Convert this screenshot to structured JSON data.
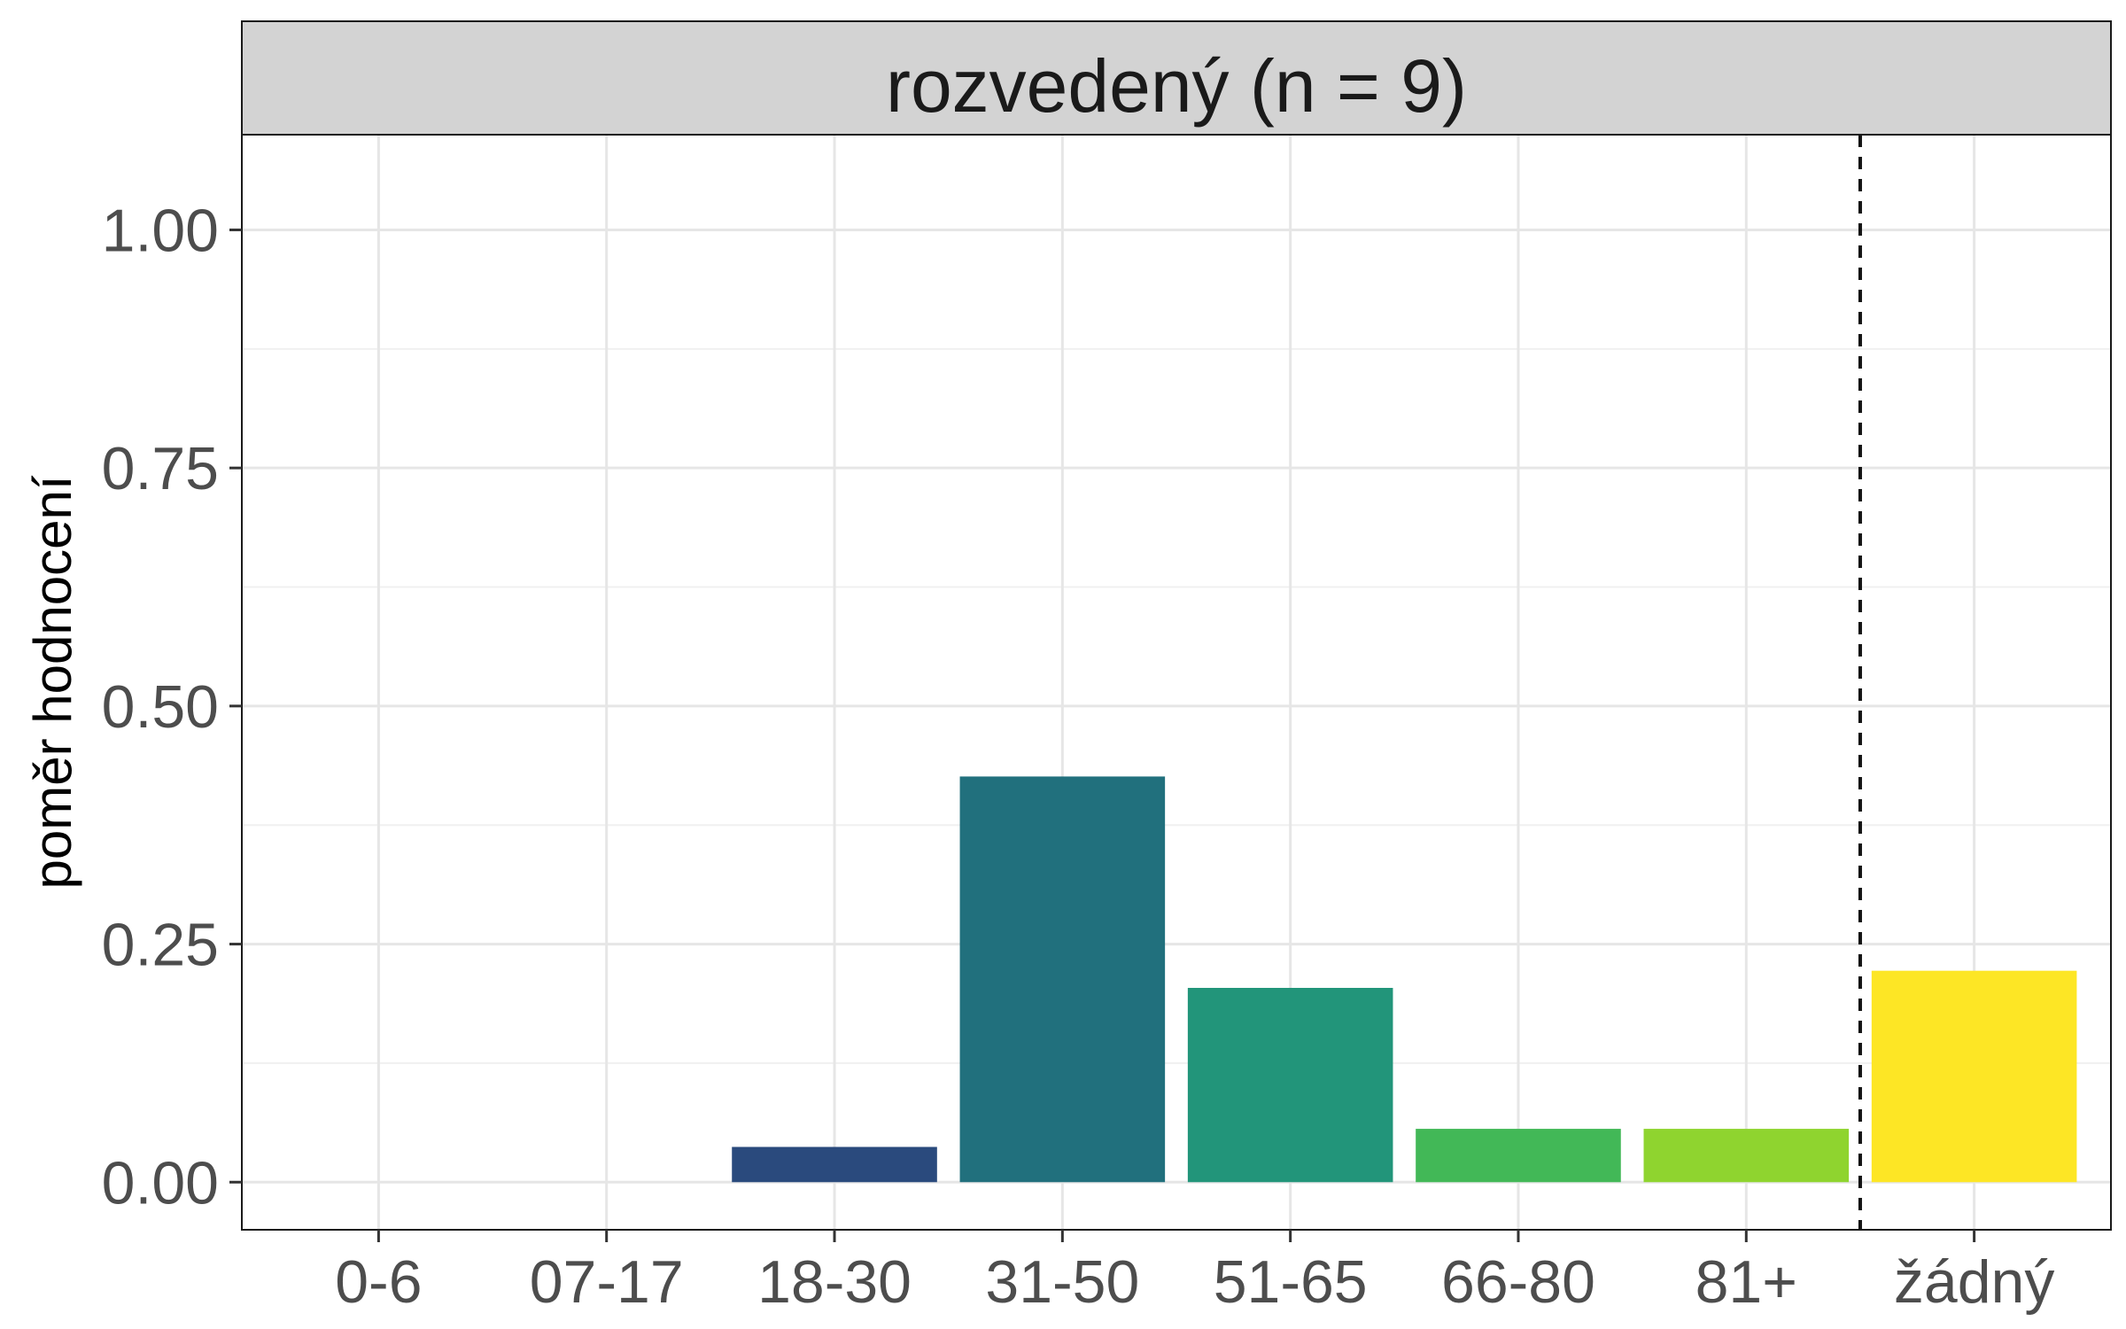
{
  "chart_data": {
    "type": "bar",
    "facet_title": "rozvedený (n = 9)",
    "ylabel": "poměr hodnocení",
    "xlabel": "",
    "categories": [
      "0-6",
      "07-17",
      "18-30",
      "31-50",
      "51-65",
      "66-80",
      "81+",
      "žádný"
    ],
    "values": [
      0,
      0,
      0.037,
      0.426,
      0.204,
      0.056,
      0.056,
      0.222
    ],
    "colors": [
      "#440154",
      "#46327E",
      "#2A4A7D",
      "#21707D",
      "#22957A",
      "#42B857",
      "#8FD42F",
      "#FDE625"
    ],
    "yticks": [
      "0.00",
      "0.25",
      "0.50",
      "0.75",
      "1.00"
    ],
    "ytick_values": [
      0,
      0.25,
      0.5,
      0.75,
      1.0
    ],
    "ylim": [
      -0.05,
      1.1
    ],
    "grid": true,
    "separator_between": [
      "81+",
      "žádný"
    ]
  }
}
